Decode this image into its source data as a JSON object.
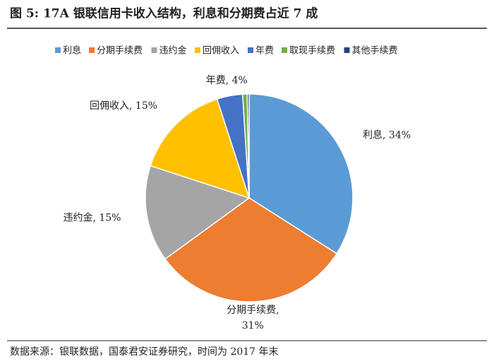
{
  "title": "图 5:   17A 银联信用卡收入结构，利息和分期费占近 7 成",
  "source": "数据来源：银联数据，国泰君安证券研究，时间为 2017 年末",
  "chart_data": {
    "type": "pie",
    "categories": [
      "利息",
      "分期手续费",
      "违约金",
      "回佣收入",
      "年费",
      "取现手续费",
      "其他手续费"
    ],
    "values": [
      34,
      31,
      15,
      15,
      4,
      0.7,
      0.3
    ],
    "value_labels": [
      "利息, 34%",
      "分期手续费,\n31%",
      "违约金, 15%",
      "回佣收入, 15%",
      "年费, 4%",
      null,
      null
    ],
    "colors": [
      "#5b9bd5",
      "#ed7d31",
      "#a5a5a5",
      "#ffc000",
      "#4472c4",
      "#70ad47",
      "#264478"
    ],
    "legend": "top"
  }
}
